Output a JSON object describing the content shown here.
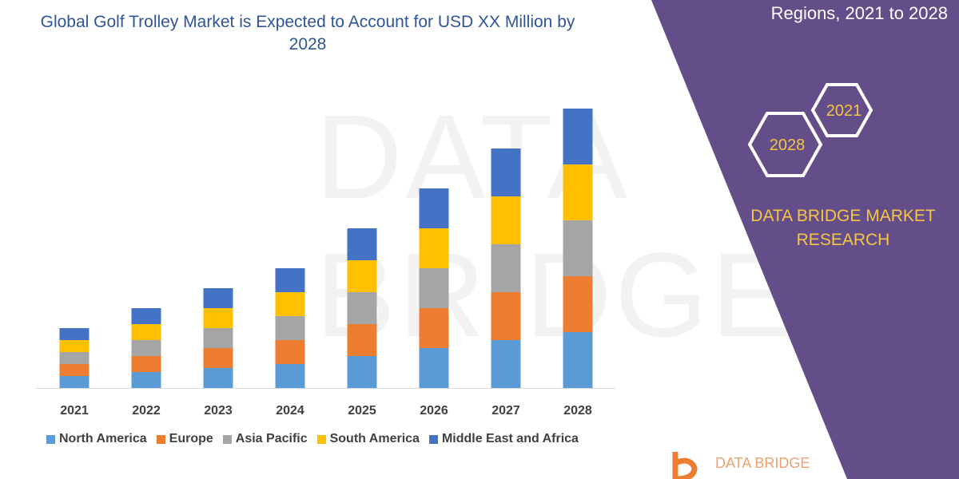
{
  "title": "Global Golf Trolley Market is Expected to Account for USD XX Million by 2028",
  "side_panel": {
    "title_partial": "Regions, 2021 to 2028",
    "hex_labels": [
      "2021",
      "2028"
    ],
    "brand": "DATA BRIDGE MARKET RESEARCH",
    "watermark": "DATA BRIDGE",
    "logo_text": "DATA BRIDGE"
  },
  "colors": {
    "panel": "#634e8a",
    "accent": "#f6c544",
    "title": "#2f5597"
  },
  "chart_data": {
    "type": "bar",
    "stacked": true,
    "title": "Global Golf Trolley Market is Expected to Account for USD XX Million by 2028",
    "categories": [
      "2021",
      "2022",
      "2023",
      "2024",
      "2025",
      "2026",
      "2027",
      "2028"
    ],
    "series": [
      {
        "name": "North America",
        "color": "#5b9bd5",
        "values": [
          3,
          4,
          5,
          6,
          8,
          10,
          12,
          14
        ]
      },
      {
        "name": "Europe",
        "color": "#ed7d31",
        "values": [
          3,
          4,
          5,
          6,
          8,
          10,
          12,
          14
        ]
      },
      {
        "name": "Asia Pacific",
        "color": "#a5a5a5",
        "values": [
          3,
          4,
          5,
          6,
          8,
          10,
          12,
          14
        ]
      },
      {
        "name": "South America",
        "color": "#ffc000",
        "values": [
          3,
          4,
          5,
          6,
          8,
          10,
          12,
          14
        ]
      },
      {
        "name": "Middle East and Africa",
        "color": "#4472c4",
        "values": [
          3,
          4,
          5,
          6,
          8,
          10,
          12,
          14
        ]
      }
    ],
    "ylim": [
      0,
      72
    ],
    "grid": false,
    "y_axis_shown": false,
    "legend_position": "bottom"
  }
}
